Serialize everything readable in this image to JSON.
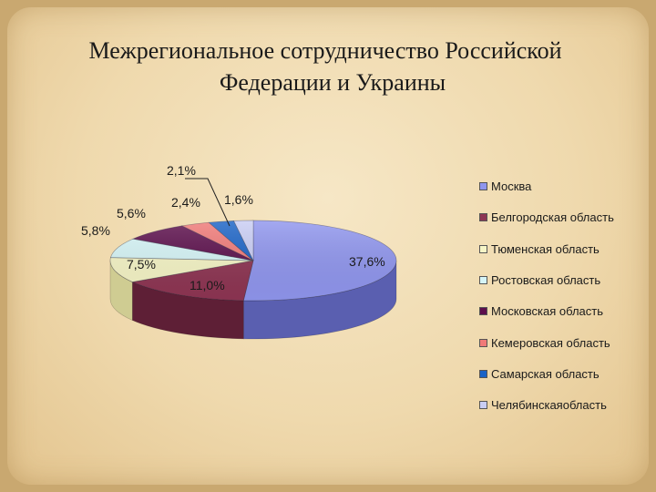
{
  "slide": {
    "title_line1": "Межрегиональное сотрудничество Российской",
    "title_line2": "Федерации и Украины"
  },
  "chart_data": {
    "type": "pie",
    "style": "3d",
    "legend_position": "right",
    "slices": [
      {
        "name": "Москва",
        "value": 37.6,
        "label": "37,6%",
        "color": "#9096ee",
        "shade": "#5a5fb0"
      },
      {
        "name": "Белгородская область",
        "value": 11.0,
        "label": "11,0%",
        "color": "#8e3553",
        "shade": "#5e1f36"
      },
      {
        "name": "Тюменская область",
        "value": 7.5,
        "label": "7,5%",
        "color": "#f6f5c6",
        "shade": "#cfcc92"
      },
      {
        "name": "Ростовская область",
        "value": 5.8,
        "label": "5,8%",
        "color": "#d6f5f7",
        "shade": "#9fc9cb"
      },
      {
        "name": "Московская область",
        "value": 5.6,
        "label": "5,6%",
        "color": "#5c0f4c",
        "shade": "#3b0831"
      },
      {
        "name": "Кемеровская область",
        "value": 2.4,
        "label": "2,4%",
        "color": "#f07a78",
        "shade": "#b84f4d"
      },
      {
        "name": "Самарская область",
        "value": 2.1,
        "label": "2,1%",
        "color": "#1b63c6",
        "shade": "#0e3f85"
      },
      {
        "name": "Челябинскаяобласть",
        "value": 1.6,
        "label": "1,6%",
        "color": "#c9cdf4",
        "shade": "#9297c6"
      }
    ]
  }
}
